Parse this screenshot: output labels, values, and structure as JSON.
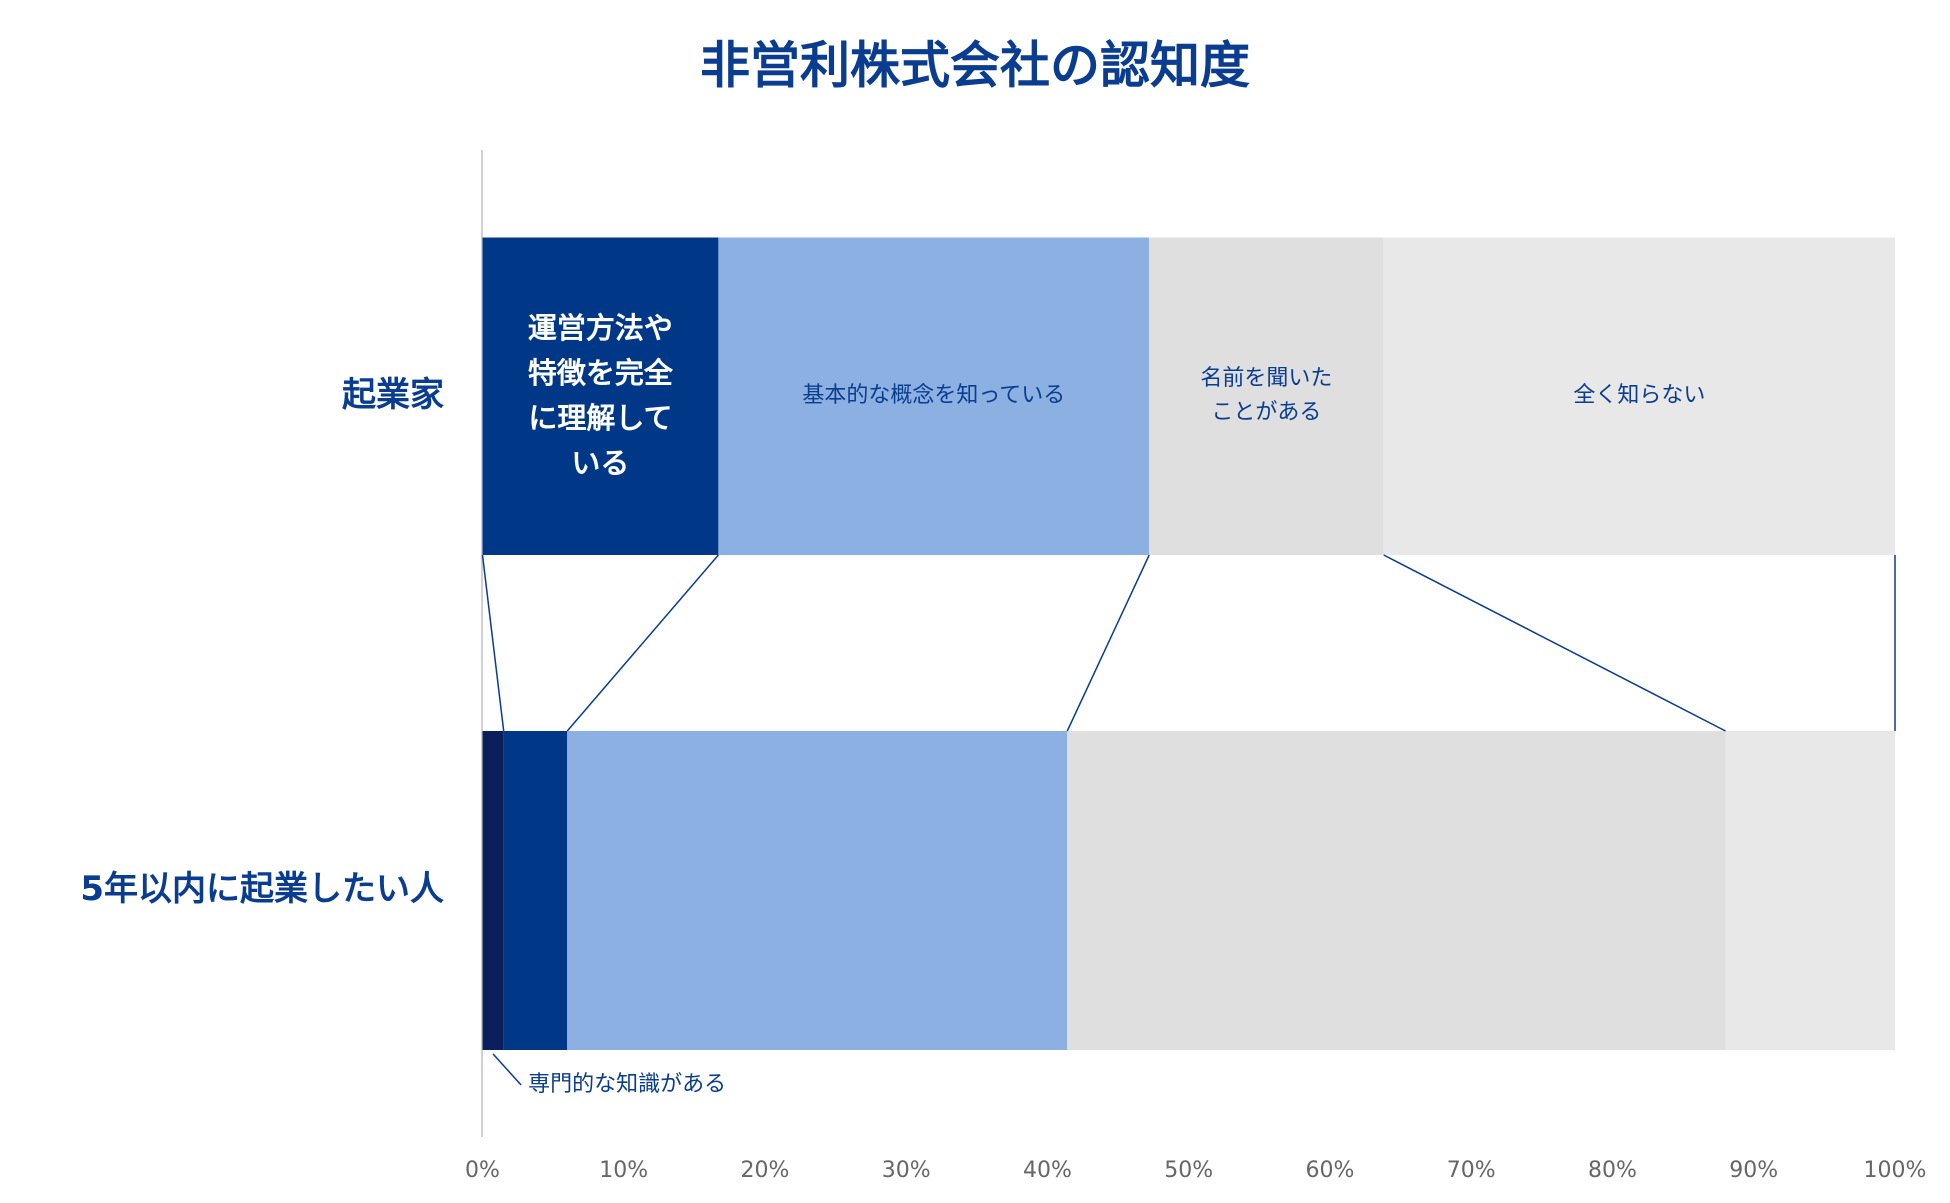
{
  "chart_data": {
    "type": "stacked_barh",
    "title": "非営利株式会社の認知度",
    "categories": [
      "起業家",
      "5年以内に起業したい人"
    ],
    "series": [
      {
        "name": "専門的な知識がある",
        "color": "#0b1f5c",
        "values": [
          0,
          1.5
        ]
      },
      {
        "name": "運営方法や特徴を完全に理解している",
        "color": "#003887",
        "values": [
          16.7,
          4.5
        ]
      },
      {
        "name": "基本的な概念を知っている",
        "color": "#8db0e3",
        "values": [
          30.5,
          35.4
        ]
      },
      {
        "name": "名前を聞いたことがある",
        "color": "#e0dfe0",
        "values": [
          16.6,
          46.6
        ]
      },
      {
        "name": "全く知らない",
        "color": "#e8e8e8",
        "values": [
          36.2,
          12.0
        ]
      }
    ],
    "xlim": [
      0,
      100
    ],
    "xticks": [
      {
        "value": 0,
        "label": "0%"
      },
      {
        "value": 10,
        "label": "10%"
      },
      {
        "value": 20,
        "label": "20%"
      },
      {
        "value": 30,
        "label": "30%"
      },
      {
        "value": 40,
        "label": "40%"
      },
      {
        "value": 50,
        "label": "50%"
      },
      {
        "value": 60,
        "label": "60%"
      },
      {
        "value": 70,
        "label": "70%"
      },
      {
        "value": 80,
        "label": "80%"
      },
      {
        "value": 90,
        "label": "90%"
      },
      {
        "value": 100,
        "label": "100%"
      }
    ]
  }
}
